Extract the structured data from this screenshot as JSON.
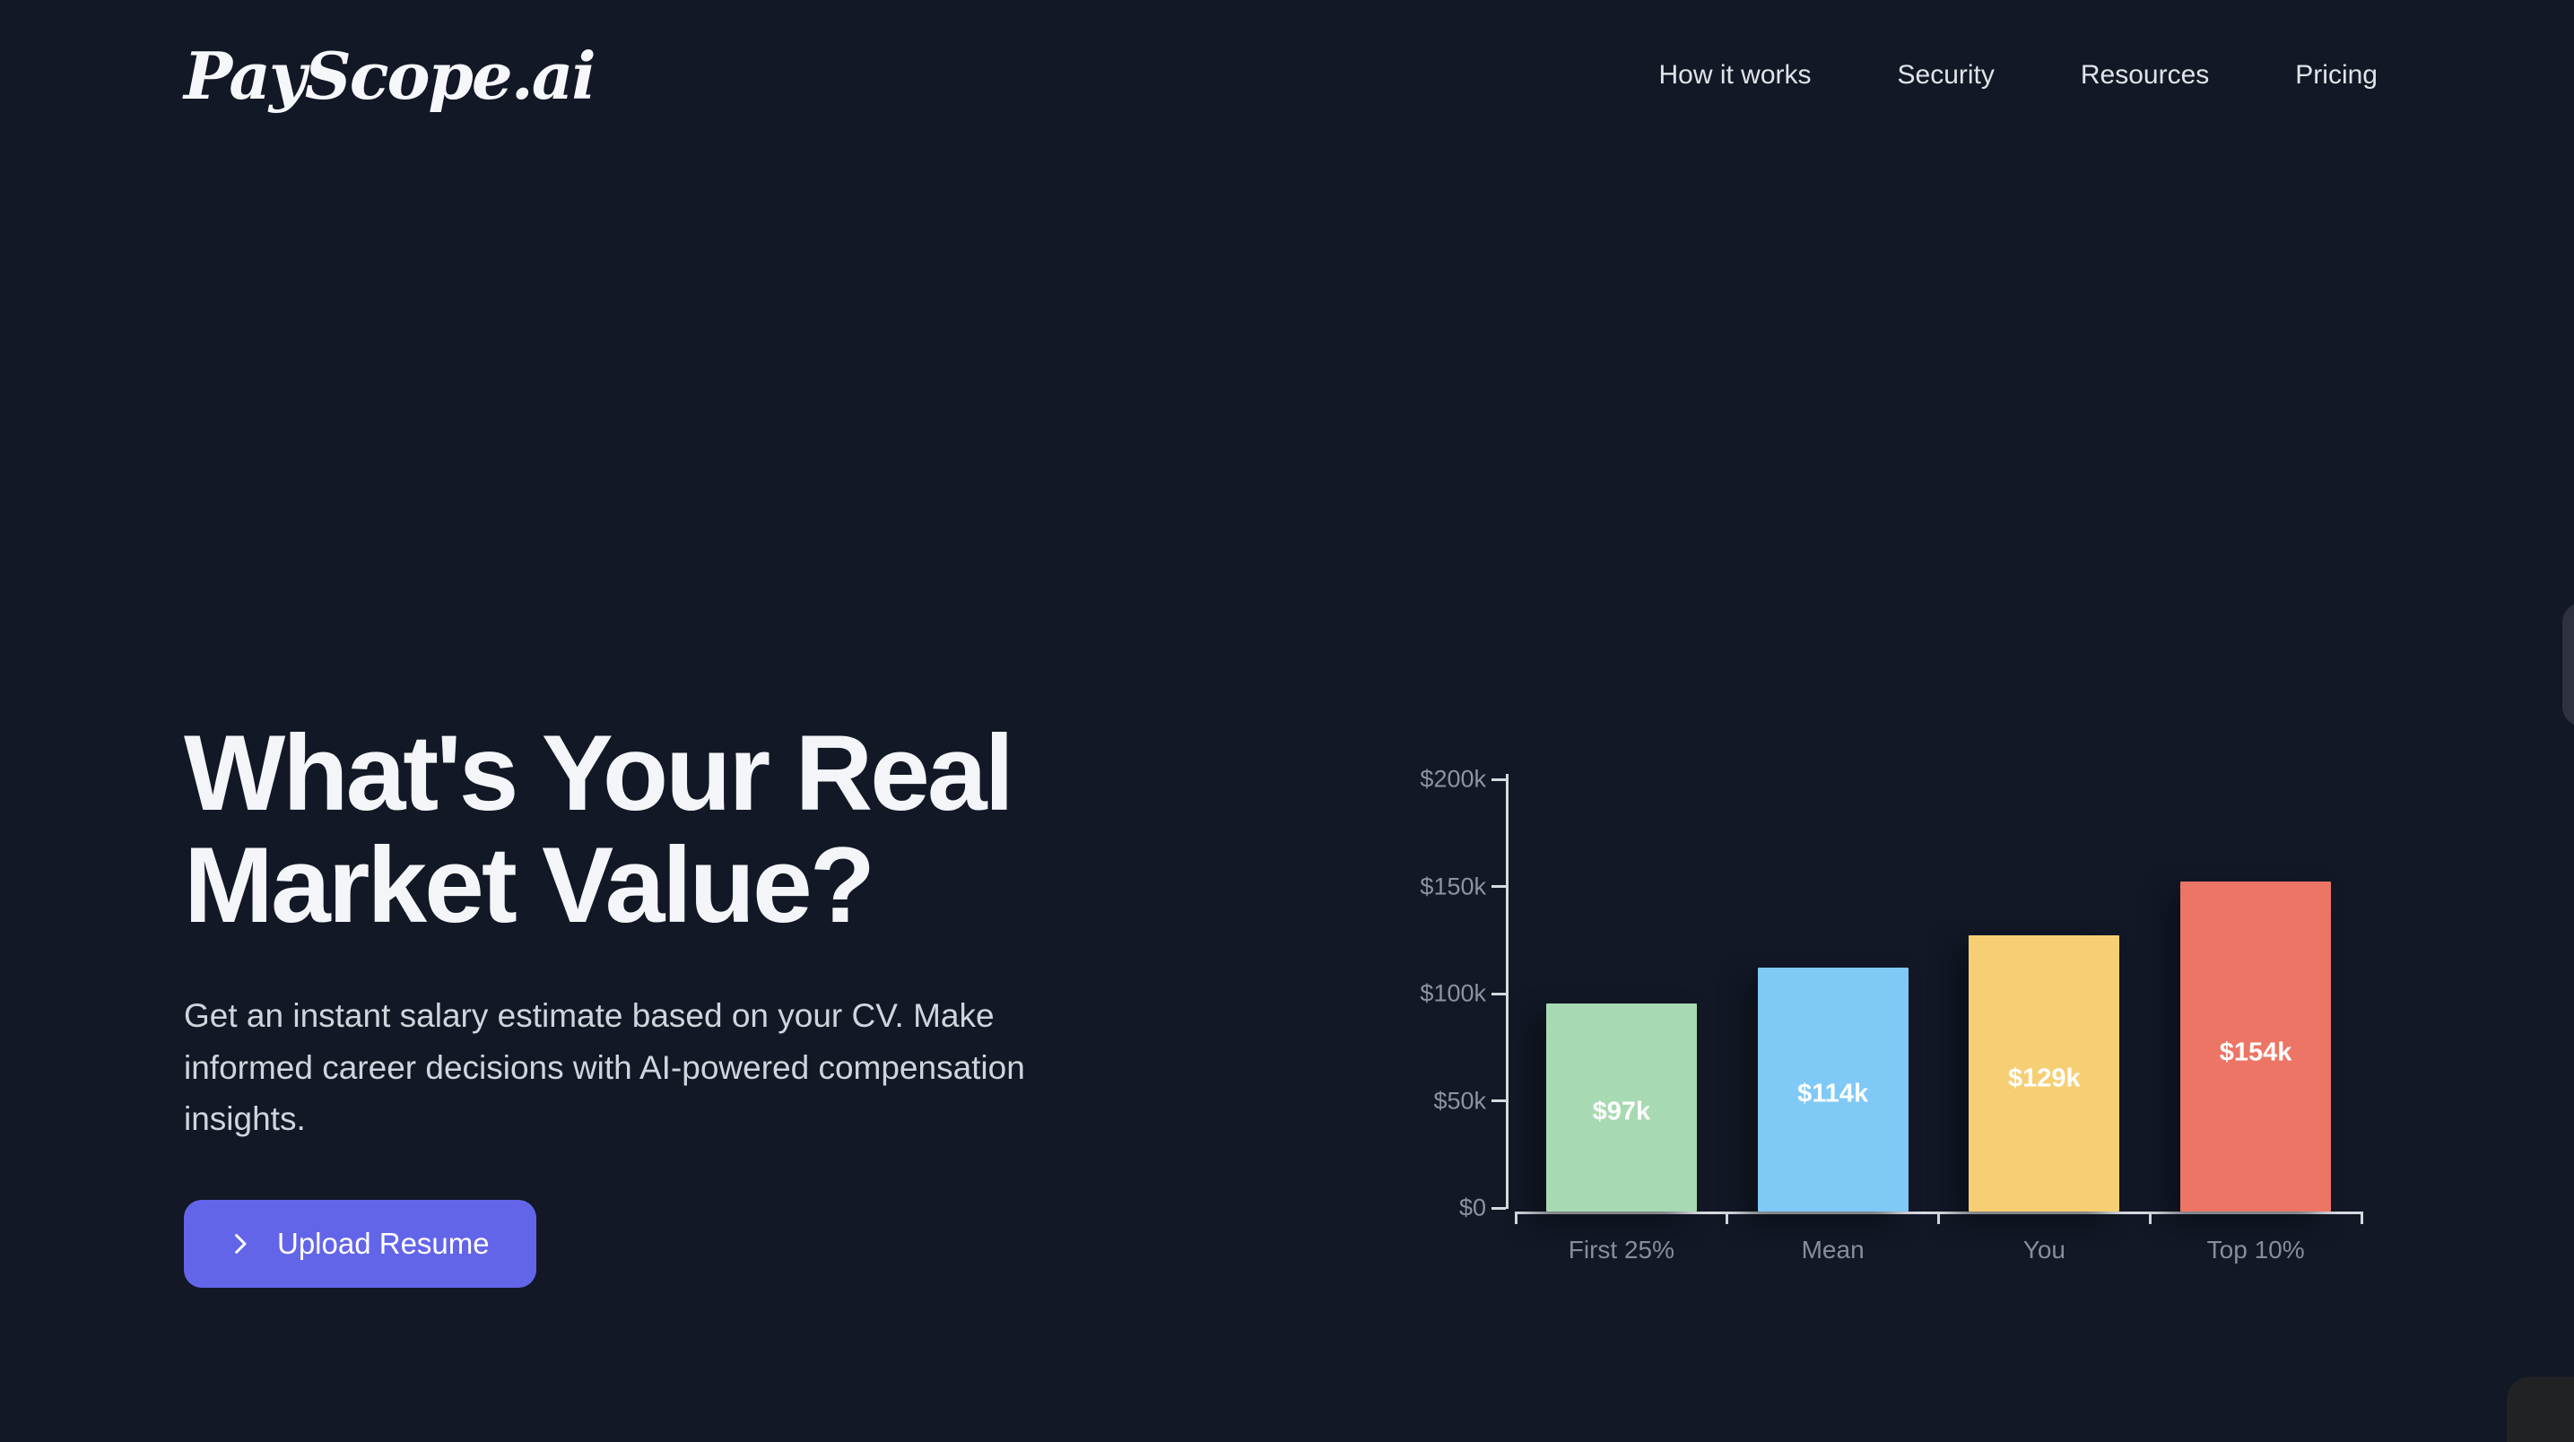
{
  "page": {
    "background_color": "#121826",
    "accent_color": "#6365e9"
  },
  "header": {
    "logo": "PayScope.ai",
    "nav": [
      {
        "label": "How it works"
      },
      {
        "label": "Security"
      },
      {
        "label": "Resources"
      },
      {
        "label": "Pricing"
      }
    ]
  },
  "hero": {
    "heading": "What's Your Real Market Value?",
    "description": "Get an instant salary estimate based on your CV. Make informed career decisions with AI-powered compensation insights.",
    "cta_label": "Upload Resume",
    "cta_icon": "chevron-right-icon"
  },
  "chart_data": {
    "type": "bar",
    "categories": [
      "First 25%",
      "Mean",
      "You",
      "Top 10%"
    ],
    "values": [
      97,
      114,
      129,
      154
    ],
    "value_labels": [
      "$97k",
      "$114k",
      "$129k",
      "$154k"
    ],
    "bar_colors": [
      "#a7dab2",
      "#7fc9f6",
      "#f6cf75",
      "#ec7565"
    ],
    "units": "USD thousands",
    "ylim": [
      0,
      200
    ],
    "yticks": [
      0,
      50,
      100,
      150,
      200
    ],
    "ytick_labels": [
      "$0",
      "$50k",
      "$100k",
      "$150k",
      "$200k"
    ],
    "grid": false,
    "legend": false,
    "axis_color": "#d6dae0",
    "ytick_label_color": "#8d93a0",
    "xtick_label_color": "#878d99",
    "value_label_color": "#ffffff"
  }
}
